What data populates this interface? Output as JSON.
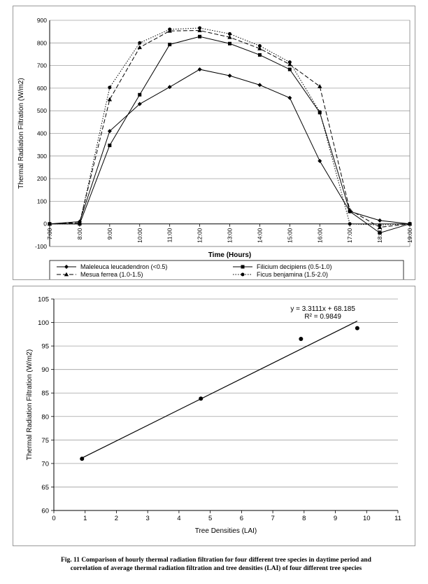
{
  "chart_data": [
    {
      "type": "line",
      "title": "",
      "xlabel": "Time (Hours)",
      "ylabel": "Thermal Radiation Filtration (W/m2)",
      "categories": [
        "7:00",
        "8:00",
        "9:00",
        "10:00",
        "11:00",
        "12:00",
        "13:00",
        "14:00",
        "15:00",
        "16:00",
        "17:00",
        "18:00",
        "19:00"
      ],
      "ylim": [
        -100,
        900
      ],
      "yticks": [
        -100,
        0,
        100,
        200,
        300,
        400,
        500,
        600,
        700,
        800,
        900
      ],
      "grid": true,
      "legend_position": "bottom",
      "series": [
        {
          "name": "Maleleuca leucadendron (<0.5)",
          "values": [
            0,
            10,
            410,
            530,
            605,
            683,
            655,
            614,
            557,
            278,
            55,
            15,
            0
          ],
          "marker": "diamond",
          "dash": "solid"
        },
        {
          "name": "Filicium decipiens (0.5-1.0)",
          "values": [
            0,
            0,
            347,
            571,
            793,
            828,
            797,
            747,
            683,
            492,
            55,
            -40,
            0
          ],
          "marker": "square",
          "dash": "solid"
        },
        {
          "name": "Mesua ferrea (1.0-1.5)",
          "values": [
            0,
            5,
            550,
            780,
            853,
            855,
            825,
            775,
            705,
            608,
            62,
            -15,
            0
          ],
          "marker": "triangle",
          "dash": "dashed"
        },
        {
          "name": "Ficus benjamina (1.5-2.0)",
          "values": [
            0,
            0,
            603,
            800,
            860,
            866,
            840,
            787,
            715,
            495,
            0,
            -5,
            0
          ],
          "marker": "circle",
          "dash": "dotted"
        }
      ]
    },
    {
      "type": "scatter",
      "title": "",
      "xlabel": "Tree Densities (LAI)",
      "ylabel": "Thermal Radiation Filtration (W/m2)",
      "xlim": [
        0,
        11
      ],
      "ylim": [
        60,
        105
      ],
      "xticks": [
        0,
        1,
        2,
        3,
        4,
        5,
        6,
        7,
        8,
        9,
        10,
        11
      ],
      "yticks": [
        60,
        65,
        70,
        75,
        80,
        85,
        90,
        95,
        100,
        105
      ],
      "grid": true,
      "points": [
        {
          "x": 0.9,
          "y": 71.0
        },
        {
          "x": 4.7,
          "y": 83.8
        },
        {
          "x": 7.9,
          "y": 96.5
        },
        {
          "x": 9.7,
          "y": 98.8
        }
      ],
      "trendline": {
        "slope": 3.3111,
        "intercept": 68.185,
        "x_range": [
          0.9,
          9.7
        ]
      },
      "equation": "y = 3.3111x + 68.185",
      "r_squared": "R² = 0.9849"
    }
  ],
  "caption": {
    "line1": "Fig. 11 Comparison of hourly thermal radiation filtration for four different tree species in daytime period and",
    "line2": "correlation of average thermal radiation filtration and tree densities (LAI) of four different tree species"
  }
}
